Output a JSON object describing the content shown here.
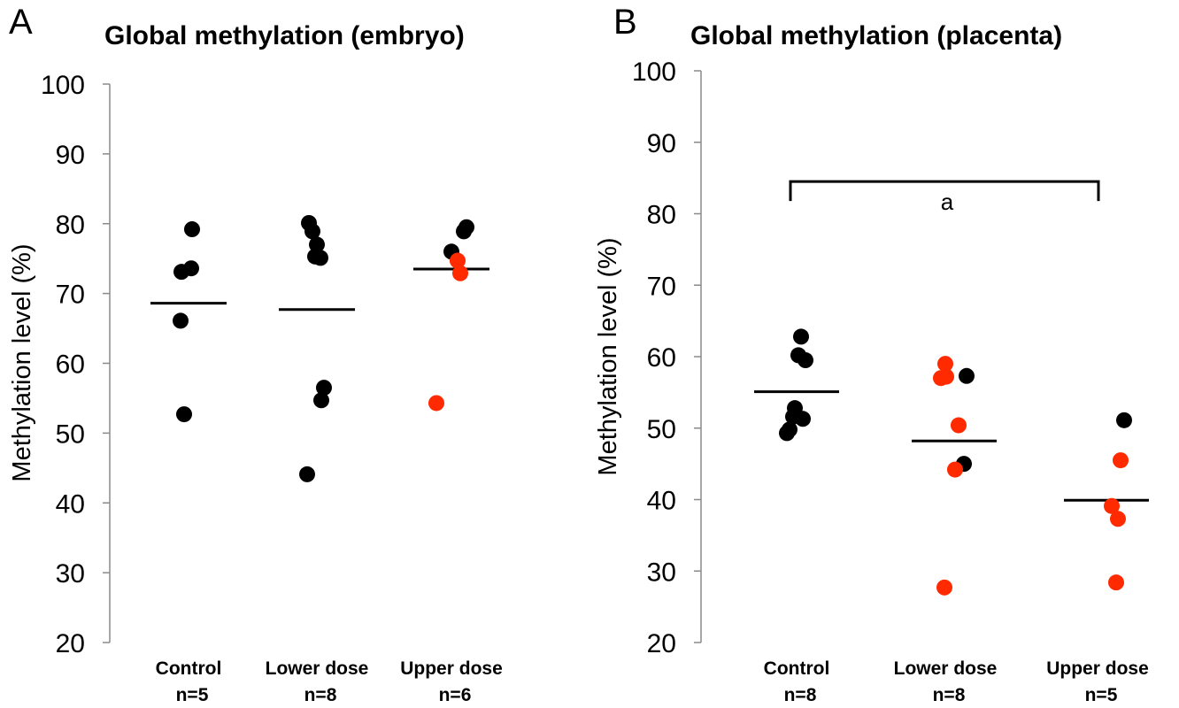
{
  "colors": {
    "black": "#000000",
    "red": "#ff2a00"
  },
  "chart_data": [
    {
      "type": "scatter",
      "panel": "A",
      "title": "Global methylation (embryo)",
      "ylabel": "Methylation level (%)",
      "ylim": [
        20,
        100
      ],
      "yticks": [
        100,
        90,
        80,
        70,
        60,
        50,
        40,
        30,
        20
      ],
      "grid": false,
      "categories": [
        {
          "name": "Control",
          "n": "n=5"
        },
        {
          "name": "Lower dose",
          "n": "n=8"
        },
        {
          "name": "Upper dose",
          "n": "n=6"
        }
      ],
      "means": [
        68.6,
        67.7,
        73.5
      ],
      "points": [
        {
          "cat": 0,
          "y": 79.2,
          "color": "black",
          "dx": 4
        },
        {
          "cat": 0,
          "y": 73.6,
          "color": "black",
          "dx": 3
        },
        {
          "cat": 0,
          "y": 73.1,
          "color": "black",
          "dx": -8
        },
        {
          "cat": 0,
          "y": 66.1,
          "color": "black",
          "dx": -9
        },
        {
          "cat": 0,
          "y": 52.7,
          "color": "black",
          "dx": -5
        },
        {
          "cat": 1,
          "y": 80.1,
          "color": "black",
          "dx": -9
        },
        {
          "cat": 1,
          "y": 78.9,
          "color": "black",
          "dx": -5
        },
        {
          "cat": 1,
          "y": 77.0,
          "color": "black",
          "dx": 0
        },
        {
          "cat": 1,
          "y": 75.3,
          "color": "black",
          "dx": -2
        },
        {
          "cat": 1,
          "y": 75.1,
          "color": "black",
          "dx": 4
        },
        {
          "cat": 1,
          "y": 56.5,
          "color": "black",
          "dx": 8
        },
        {
          "cat": 1,
          "y": 54.7,
          "color": "black",
          "dx": 5
        },
        {
          "cat": 1,
          "y": 44.1,
          "color": "black",
          "dx": -11
        },
        {
          "cat": 2,
          "y": 79.5,
          "color": "black",
          "dx": 17
        },
        {
          "cat": 2,
          "y": 78.9,
          "color": "black",
          "dx": 14
        },
        {
          "cat": 2,
          "y": 76.0,
          "color": "black",
          "dx": 0
        },
        {
          "cat": 2,
          "y": 74.7,
          "color": "red",
          "dx": 7
        },
        {
          "cat": 2,
          "y": 72.9,
          "color": "red",
          "dx": 10
        },
        {
          "cat": 2,
          "y": 54.3,
          "color": "red",
          "dx": -17
        }
      ]
    },
    {
      "type": "scatter",
      "panel": "B",
      "title": "Global methylation (placenta)",
      "ylabel": "Methylation level (%)",
      "ylim": [
        20,
        100
      ],
      "yticks": [
        100,
        90,
        80,
        70,
        60,
        50,
        40,
        30,
        20
      ],
      "grid": false,
      "categories": [
        {
          "name": "Control",
          "n": "n=8"
        },
        {
          "name": "Lower dose",
          "n": "n=8"
        },
        {
          "name": "Upper dose",
          "n": "n=5"
        }
      ],
      "means": [
        55.1,
        48.2,
        39.9
      ],
      "annotation": {
        "text": "a",
        "from": 0,
        "to": 2,
        "y": 84.5
      },
      "points": [
        {
          "cat": 0,
          "y": 62.8,
          "color": "black",
          "dx": 5
        },
        {
          "cat": 0,
          "y": 60.2,
          "color": "black",
          "dx": 2
        },
        {
          "cat": 0,
          "y": 59.5,
          "color": "black",
          "dx": 10
        },
        {
          "cat": 0,
          "y": 52.8,
          "color": "black",
          "dx": -2
        },
        {
          "cat": 0,
          "y": 51.6,
          "color": "black",
          "dx": -4
        },
        {
          "cat": 0,
          "y": 51.3,
          "color": "black",
          "dx": 7
        },
        {
          "cat": 0,
          "y": 49.8,
          "color": "black",
          "dx": -8
        },
        {
          "cat": 0,
          "y": 49.3,
          "color": "black",
          "dx": -11
        },
        {
          "cat": 1,
          "y": 59.0,
          "color": "red",
          "dx": 0
        },
        {
          "cat": 1,
          "y": 57.3,
          "color": "black",
          "dx": 24
        },
        {
          "cat": 1,
          "y": 57.0,
          "color": "red",
          "dx": -5
        },
        {
          "cat": 1,
          "y": 57.2,
          "color": "red",
          "dx": 1
        },
        {
          "cat": 1,
          "y": 50.4,
          "color": "red",
          "dx": 15
        },
        {
          "cat": 1,
          "y": 45.0,
          "color": "black",
          "dx": 21
        },
        {
          "cat": 1,
          "y": 44.2,
          "color": "red",
          "dx": 11
        },
        {
          "cat": 1,
          "y": 27.7,
          "color": "red",
          "dx": -1
        },
        {
          "cat": 2,
          "y": 51.1,
          "color": "black",
          "dx": 30
        },
        {
          "cat": 2,
          "y": 45.5,
          "color": "red",
          "dx": 26
        },
        {
          "cat": 2,
          "y": 39.1,
          "color": "red",
          "dx": 16
        },
        {
          "cat": 2,
          "y": 37.3,
          "color": "red",
          "dx": 23
        },
        {
          "cat": 2,
          "y": 28.4,
          "color": "red",
          "dx": 21
        }
      ]
    }
  ]
}
